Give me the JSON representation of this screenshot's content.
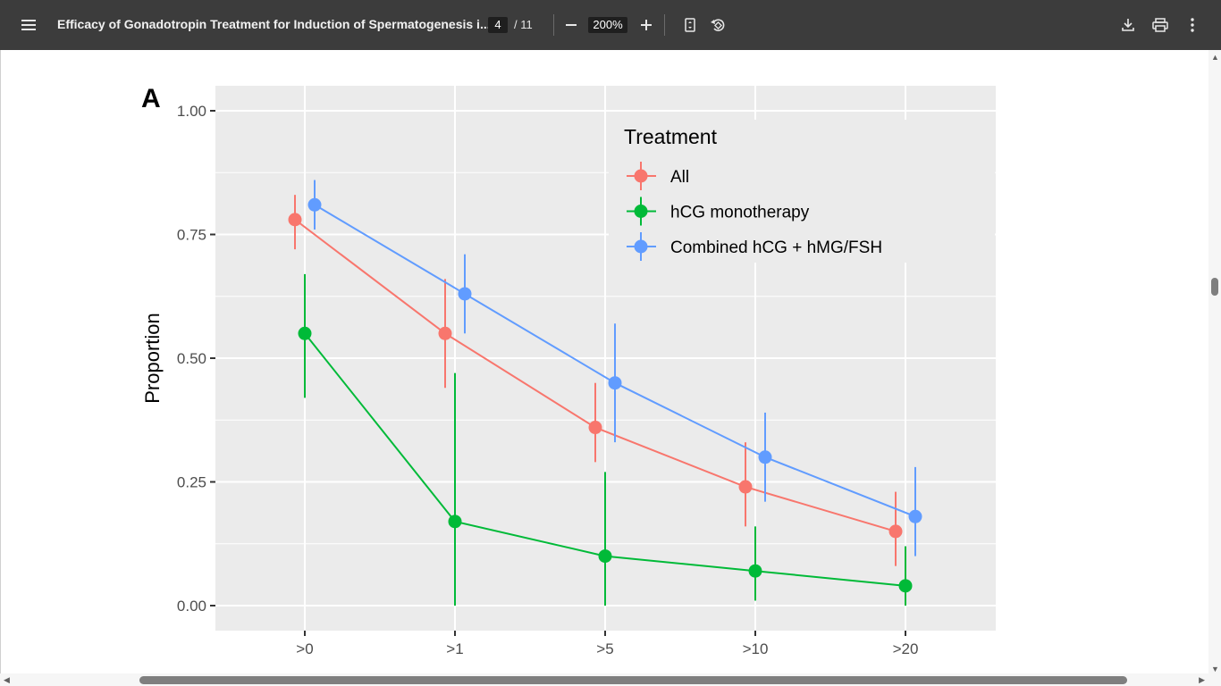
{
  "toolbar": {
    "title": "Efficacy of Gonadotropin Treatment for Induction of Spermatogenesis i...",
    "page_current": "4",
    "page_total": "/ 11",
    "zoom": "200%",
    "icons": [
      "menu-icon",
      "minus-icon",
      "plus-icon",
      "fit-page-icon",
      "rotate-icon",
      "download-icon",
      "print-icon",
      "more-vert-icon"
    ]
  },
  "figure": {
    "panel_label": "A"
  },
  "chart_data": {
    "type": "line",
    "title": "",
    "xlabel": "",
    "ylabel": "Proportion",
    "categories": [
      ">0",
      ">1",
      ">5",
      ">10",
      ">20"
    ],
    "ylim": [
      0,
      1.0
    ],
    "yticks": [
      "0.00",
      "0.25",
      "0.50",
      "0.75",
      "1.00"
    ],
    "grid": true,
    "legend": {
      "title": "Treatment",
      "position": "top-right"
    },
    "error_bars": true,
    "series": [
      {
        "name": "All",
        "color": "#f8766d",
        "values": [
          0.78,
          0.55,
          0.36,
          0.24,
          0.15
        ],
        "lower": [
          0.72,
          0.44,
          0.29,
          0.16,
          0.08
        ],
        "upper": [
          0.83,
          0.66,
          0.45,
          0.33,
          0.23
        ]
      },
      {
        "name": "hCG monotherapy",
        "color": "#00ba38",
        "values": [
          0.55,
          0.17,
          0.1,
          0.07,
          0.04
        ],
        "lower": [
          0.42,
          0.0,
          0.0,
          0.01,
          0.0
        ],
        "upper": [
          0.67,
          0.47,
          0.27,
          0.16,
          0.12
        ]
      },
      {
        "name": "Combined hCG + hMG/FSH",
        "color": "#619cff",
        "values": [
          0.81,
          0.63,
          0.45,
          0.3,
          0.18
        ],
        "lower": [
          0.76,
          0.55,
          0.33,
          0.21,
          0.1
        ],
        "upper": [
          0.86,
          0.71,
          0.57,
          0.39,
          0.28
        ]
      }
    ]
  }
}
